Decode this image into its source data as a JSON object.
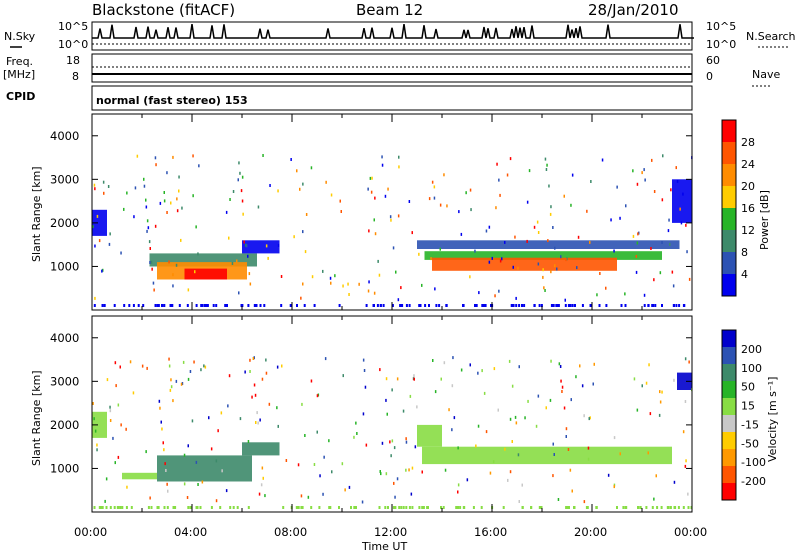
{
  "header": {
    "title": "Blackstone (fitACF)",
    "beam": "Beam 12",
    "date": "28/Jan/2010"
  },
  "strip": {
    "nsky_label": "N.Sky",
    "nsky_ticks": [
      "10^5",
      "10^0"
    ],
    "nsearch_label": "N.Search",
    "nsearch_ticks": [
      "10^5",
      "10^0"
    ],
    "freq_label_line1": "Freq.",
    "freq_label_line2": "[MHz]",
    "freq_ticks": [
      "18",
      "8"
    ],
    "nave_label": "Nave",
    "nave_ticks": [
      "60",
      "0"
    ],
    "cpid_label": "CPID",
    "mode_text": "normal (fast stereo) 153"
  },
  "axes": {
    "y_label": "Slant Range [km]",
    "y_ticks": [
      "4000",
      "3000",
      "2000",
      "1000"
    ],
    "x_label": "Time UT",
    "x_ticks": [
      "00:00",
      "04:00",
      "08:00",
      "12:00",
      "16:00",
      "20:00",
      "00:00"
    ]
  },
  "power_scale": {
    "label": "Power [dB]",
    "ticks": [
      "28",
      "24",
      "20",
      "16",
      "12",
      "8",
      "4"
    ],
    "colors": [
      "#0000ee",
      "#2c52b3",
      "#3d8a6a",
      "#27b427",
      "#ffcc00",
      "#ff8c00",
      "#ff5500",
      "#ff0000"
    ]
  },
  "velocity_scale": {
    "label": "Velocity [m s⁻¹]",
    "ticks": [
      "200",
      "100",
      "50",
      "15",
      "-15",
      "-50",
      "-100",
      "-200"
    ],
    "colors": [
      "#ff0000",
      "#ff5500",
      "#ff9900",
      "#ffcc00",
      "#c8c8c8",
      "#88dd44",
      "#27b427",
      "#3d8a6a",
      "#2c52b3",
      "#0000cc"
    ]
  },
  "chart_data": [
    {
      "type": "heatmap",
      "panel": "power",
      "x_unit": "hours UT",
      "xlim": [
        0,
        24
      ],
      "ylim": [
        0,
        4500
      ],
      "ylabel": "Slant Range [km]",
      "colorbar_label": "Power [dB]",
      "regions": [
        {
          "t": [
            0.0,
            0.6
          ],
          "r": [
            1700,
            2300
          ],
          "level": 0
        },
        {
          "t": [
            2.3,
            6.6
          ],
          "r": [
            1000,
            1300
          ],
          "level": 2
        },
        {
          "t": [
            2.6,
            6.2
          ],
          "r": [
            700,
            1100
          ],
          "level": 5
        },
        {
          "t": [
            3.7,
            5.4
          ],
          "r": [
            700,
            950
          ],
          "level": 7
        },
        {
          "t": [
            6.0,
            7.5
          ],
          "r": [
            1300,
            1600
          ],
          "level": 0
        },
        {
          "t": [
            13.0,
            23.5
          ],
          "r": [
            1400,
            1600
          ],
          "level": 1
        },
        {
          "t": [
            13.3,
            22.8
          ],
          "r": [
            1150,
            1350
          ],
          "level": 3
        },
        {
          "t": [
            13.6,
            21.0
          ],
          "r": [
            900,
            1200
          ],
          "level": 6
        },
        {
          "t": [
            23.2,
            24.0
          ],
          "r": [
            2000,
            3000
          ],
          "level": 0
        }
      ]
    },
    {
      "type": "heatmap",
      "panel": "velocity",
      "x_unit": "hours UT",
      "xlim": [
        0,
        24
      ],
      "ylim": [
        0,
        4500
      ],
      "ylabel": "Slant Range [km]",
      "colorbar_label": "Velocity [m s⁻¹]",
      "regions": [
        {
          "t": [
            0.0,
            0.6
          ],
          "r": [
            1700,
            2300
          ],
          "level": 4
        },
        {
          "t": [
            2.6,
            6.4
          ],
          "r": [
            700,
            1300
          ],
          "level": 2
        },
        {
          "t": [
            1.2,
            2.6
          ],
          "r": [
            750,
            900
          ],
          "level": 4
        },
        {
          "t": [
            6.0,
            7.5
          ],
          "r": [
            1300,
            1600
          ],
          "level": 2
        },
        {
          "t": [
            13.2,
            23.2
          ],
          "r": [
            1100,
            1500
          ],
          "level": 4
        },
        {
          "t": [
            13.0,
            14.0
          ],
          "r": [
            1500,
            2000
          ],
          "level": 4
        },
        {
          "t": [
            23.4,
            24.0
          ],
          "r": [
            2800,
            3200
          ],
          "level": 0
        }
      ]
    }
  ]
}
